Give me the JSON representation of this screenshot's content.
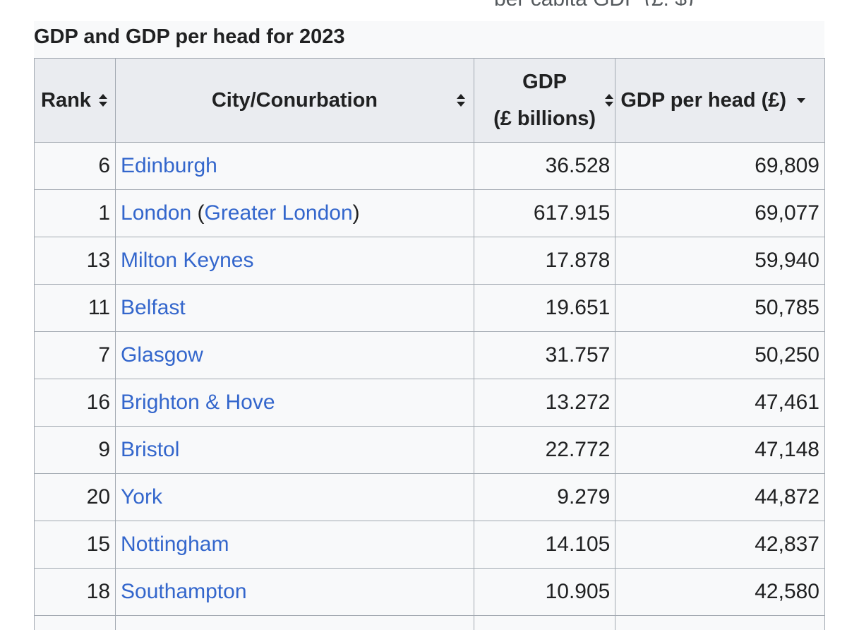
{
  "caption": "GDP and GDP per head for 2023",
  "top_fragment": "per capita GDP (£, $)",
  "columns": {
    "rank": "Rank",
    "city": "City/Conurbation",
    "gdp_line1": "GDP",
    "gdp_line2": "(£ billions)",
    "gdp_per_head": "GDP per head (£)"
  },
  "sort": {
    "rank": "sortable",
    "city": "sortable",
    "gdp": "sortable",
    "gdp_per_head": "sorted-descending"
  },
  "rows": [
    {
      "rank": "6",
      "city": "Edinburgh",
      "region": "",
      "gdp": "36.528",
      "gdp_per_head": "69,809"
    },
    {
      "rank": "1",
      "city": "London",
      "region": "Greater London",
      "gdp": "617.915",
      "gdp_per_head": "69,077"
    },
    {
      "rank": "13",
      "city": "Milton Keynes",
      "region": "",
      "gdp": "17.878",
      "gdp_per_head": "59,940"
    },
    {
      "rank": "11",
      "city": "Belfast",
      "region": "",
      "gdp": "19.651",
      "gdp_per_head": "50,785"
    },
    {
      "rank": "7",
      "city": "Glasgow",
      "region": "",
      "gdp": "31.757",
      "gdp_per_head": "50,250"
    },
    {
      "rank": "16",
      "city": "Brighton & Hove",
      "region": "",
      "gdp": "13.272",
      "gdp_per_head": "47,461"
    },
    {
      "rank": "9",
      "city": "Bristol",
      "region": "",
      "gdp": "22.772",
      "gdp_per_head": "47,148"
    },
    {
      "rank": "20",
      "city": "York",
      "region": "",
      "gdp": "9.279",
      "gdp_per_head": "44,872"
    },
    {
      "rank": "15",
      "city": "Nottingham",
      "region": "",
      "gdp": "14.105",
      "gdp_per_head": "42,837"
    },
    {
      "rank": "18",
      "city": "Southampton",
      "region": "",
      "gdp": "10.905",
      "gdp_per_head": "42,580"
    }
  ],
  "colors": {
    "link": "#3366cc",
    "header_bg": "#eaecf0",
    "cell_bg": "#f8f9fa",
    "border": "#a2a9b1",
    "text": "#202122"
  }
}
